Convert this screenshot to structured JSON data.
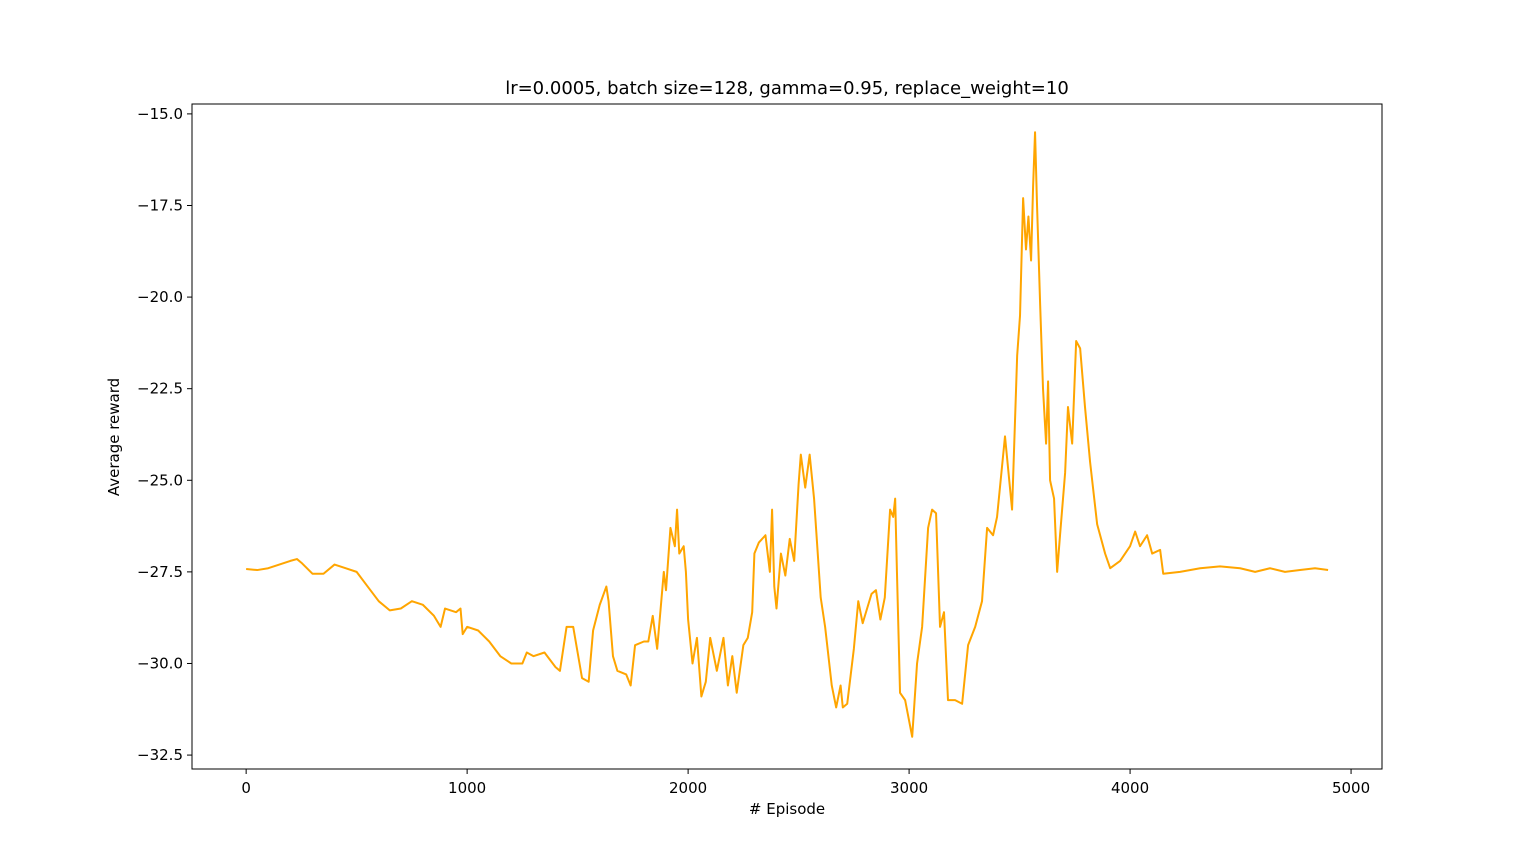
{
  "chart_data": {
    "type": "line",
    "title": "lr=0.0005, batch size=128, gamma=0.95, replace_weight=10",
    "xlabel": "# Episode",
    "ylabel": "Average reward",
    "xlim": [
      -245,
      5140
    ],
    "ylim": [
      -32.88,
      -14.73
    ],
    "xticks": [
      0,
      1000,
      2000,
      3000,
      4000,
      5000
    ],
    "yticks": [
      {
        "value": -32.5,
        "label": "−32.5"
      },
      {
        "value": -30,
        "label": "−30.0"
      },
      {
        "value": -27.5,
        "label": "−27.5"
      },
      {
        "value": -25,
        "label": "−25.0"
      },
      {
        "value": -22.5,
        "label": "−22.5"
      },
      {
        "value": -20,
        "label": "−20.0"
      },
      {
        "value": -17.5,
        "label": "−17.5"
      },
      {
        "value": -15,
        "label": "−15.0"
      }
    ],
    "grid": false,
    "x": [
      0,
      50,
      100,
      150,
      200,
      230,
      250,
      300,
      350,
      400,
      450,
      500,
      550,
      600,
      650,
      700,
      750,
      800,
      850,
      880,
      900,
      950,
      970,
      980,
      1000,
      1050,
      1100,
      1150,
      1200,
      1250,
      1270,
      1300,
      1350,
      1400,
      1420,
      1450,
      1480,
      1500,
      1520,
      1550,
      1570,
      1600,
      1630,
      1640,
      1660,
      1680,
      1720,
      1740,
      1760,
      1800,
      1820,
      1840,
      1860,
      1880,
      1890,
      1900,
      1920,
      1940,
      1950,
      1960,
      1980,
      1990,
      2000,
      2020,
      2040,
      2060,
      2080,
      2100,
      2130,
      2160,
      2180,
      2200,
      2220,
      2250,
      2270,
      2290,
      2300,
      2320,
      2350,
      2370,
      2380,
      2390,
      2400,
      2420,
      2440,
      2460,
      2480,
      2500,
      2510,
      2530,
      2550,
      2570,
      2580,
      2600,
      2620,
      2650,
      2670,
      2690,
      2700,
      2720,
      2750,
      2770,
      2790,
      2810,
      2830,
      2850,
      2870,
      2890,
      2914,
      2928,
      2937,
      2945,
      2959,
      2982,
      3014,
      3036,
      3059,
      3086,
      3104,
      3122,
      3140,
      3158,
      3176,
      3208,
      3240,
      3267,
      3299,
      3330,
      3353,
      3380,
      3398,
      3434,
      3466,
      3489,
      3502,
      3516,
      3529,
      3540,
      3552,
      3561,
      3570,
      3579,
      3593,
      3606,
      3620,
      3629,
      3638,
      3656,
      3670,
      3683,
      3706,
      3719,
      3738,
      3756,
      3774,
      3796,
      3819,
      3851,
      3887,
      3910,
      3955,
      4000,
      4023,
      4045,
      4077,
      4100,
      4136,
      4150,
      4226,
      4317,
      4407,
      4498,
      4566,
      4633,
      4701,
      4769,
      4837,
      4896
    ],
    "series": [
      {
        "name": "reward",
        "color": "#ffa500",
        "values": [
          -27.42,
          -27.45,
          -27.4,
          -27.3,
          -27.2,
          -27.15,
          -27.25,
          -27.55,
          -27.55,
          -27.3,
          -27.4,
          -27.5,
          -27.9,
          -28.3,
          -28.55,
          -28.5,
          -28.3,
          -28.4,
          -28.7,
          -29.0,
          -28.5,
          -28.6,
          -28.5,
          -29.2,
          -29.0,
          -29.1,
          -29.4,
          -29.8,
          -30.0,
          -30.0,
          -29.7,
          -29.8,
          -29.7,
          -30.1,
          -30.2,
          -29.0,
          -29.0,
          -29.7,
          -30.4,
          -30.5,
          -29.1,
          -28.4,
          -27.9,
          -28.3,
          -29.8,
          -30.2,
          -30.3,
          -30.6,
          -29.5,
          -29.4,
          -29.4,
          -28.7,
          -29.6,
          -28.2,
          -27.5,
          -28.0,
          -26.3,
          -26.8,
          -25.8,
          -27.0,
          -26.8,
          -27.5,
          -28.8,
          -30.0,
          -29.3,
          -30.9,
          -30.5,
          -29.3,
          -30.2,
          -29.3,
          -30.6,
          -29.8,
          -30.8,
          -29.5,
          -29.3,
          -28.6,
          -27.0,
          -26.7,
          -26.5,
          -27.5,
          -25.8,
          -27.9,
          -28.5,
          -27.0,
          -27.6,
          -26.6,
          -27.2,
          -25.1,
          -24.3,
          -25.2,
          -24.3,
          -25.5,
          -26.4,
          -28.2,
          -29.0,
          -30.6,
          -31.2,
          -30.6,
          -31.2,
          -31.1,
          -29.6,
          -28.3,
          -28.9,
          -28.5,
          -28.1,
          -28.0,
          -28.8,
          -28.2,
          -25.8,
          -26.0,
          -25.5,
          -27.5,
          -30.8,
          -31.0,
          -32.0,
          -30.0,
          -29.0,
          -26.3,
          -25.8,
          -25.9,
          -29.0,
          -28.6,
          -31.0,
          -31.0,
          -31.1,
          -29.5,
          -29.0,
          -28.3,
          -26.3,
          -26.5,
          -26.0,
          -23.8,
          -25.8,
          -21.6,
          -20.5,
          -17.3,
          -18.7,
          -17.8,
          -19.0,
          -17.0,
          -15.5,
          -17.5,
          -20.2,
          -22.5,
          -24.0,
          -22.3,
          -25.0,
          -25.5,
          -27.5,
          -26.5,
          -24.8,
          -23.0,
          -24.0,
          -21.2,
          -21.4,
          -23.0,
          -24.5,
          -26.2,
          -27.0,
          -27.4,
          -27.2,
          -26.8,
          -26.4,
          -26.8,
          -26.5,
          -27.0,
          -26.9,
          -27.55,
          -27.5,
          -27.4,
          -27.35,
          -27.4,
          -27.5,
          -27.4,
          -27.5,
          -27.45,
          -27.4,
          -27.45
        ]
      }
    ]
  }
}
